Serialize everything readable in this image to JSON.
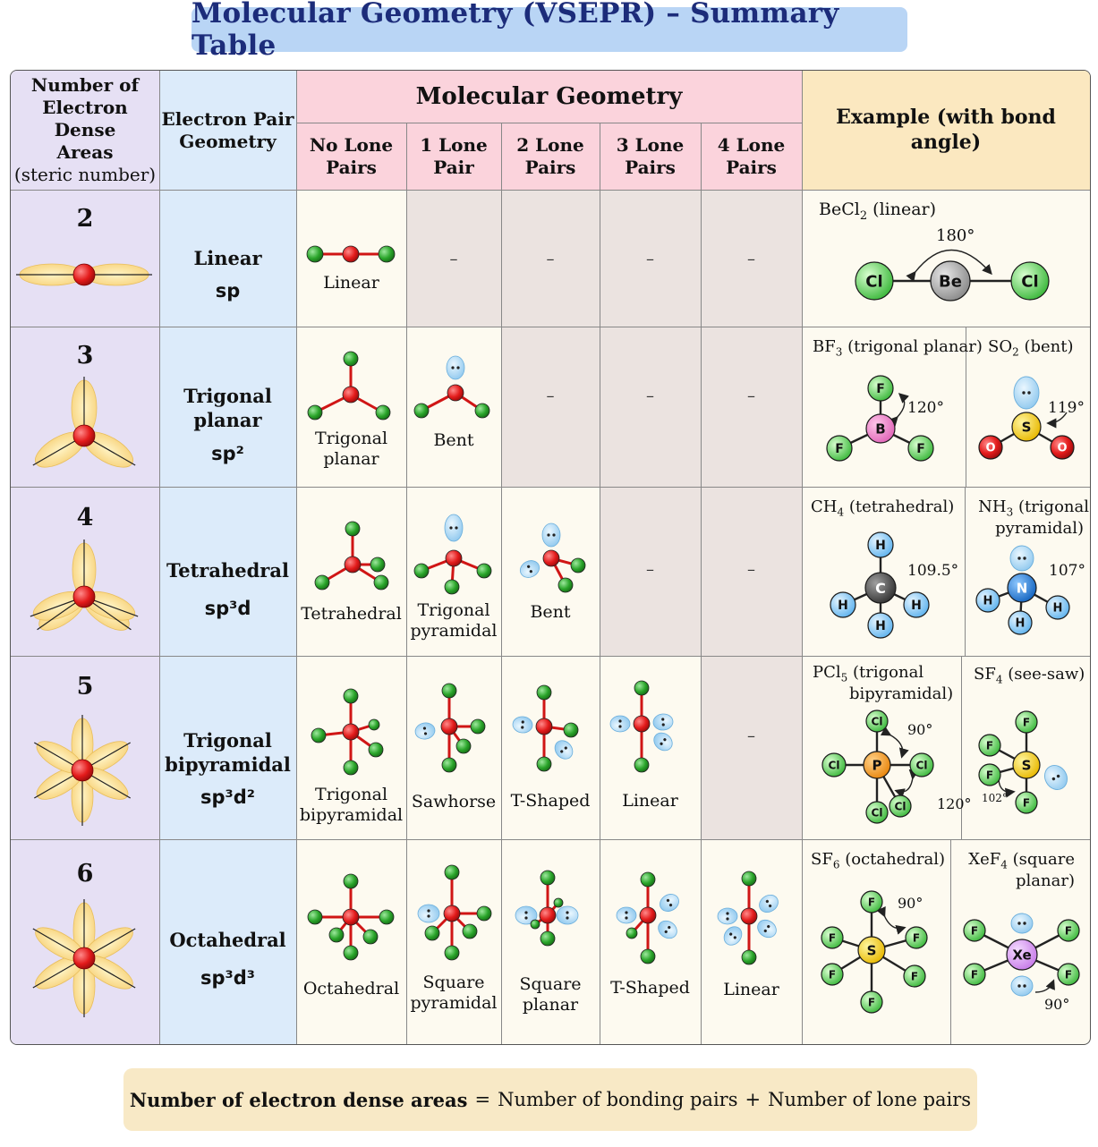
{
  "title": "Molecular Geometry (VSEPR) – Summary Table",
  "header": {
    "col1": [
      "Number of",
      "Electron Dense",
      "Areas",
      "(steric number)"
    ],
    "col2": [
      "Electron Pair",
      "Geometry"
    ],
    "molecular_geometry": "Molecular Geometry",
    "lone_cols": [
      [
        "No Lone",
        "Pairs"
      ],
      [
        "1 Lone",
        "Pair"
      ],
      [
        "2 Lone",
        "Pairs"
      ],
      [
        "3 Lone",
        "Pairs"
      ],
      [
        "4 Lone",
        "Pairs"
      ]
    ],
    "example": "Example (with bond angle)"
  },
  "empty_mark": "–",
  "rows": [
    {
      "steric": "2",
      "epg": [
        "Linear"
      ],
      "hyb": "sp",
      "shapes": [
        [
          "Linear"
        ]
      ]
    },
    {
      "steric": "3",
      "epg": [
        "Trigonal",
        "planar"
      ],
      "hyb": "sp²",
      "shapes": [
        [
          "Trigonal",
          "planar"
        ],
        [
          "Bent"
        ]
      ]
    },
    {
      "steric": "4",
      "epg": [
        "Tetrahedral"
      ],
      "hyb": "sp³d",
      "shapes": [
        [
          "Tetrahedral"
        ],
        [
          "Trigonal",
          "pyramidal"
        ],
        [
          "Bent"
        ]
      ]
    },
    {
      "steric": "5",
      "epg": [
        "Trigonal",
        "bipyramidal"
      ],
      "hyb": "sp³d²",
      "shapes": [
        [
          "Trigonal",
          "bipyramidal"
        ],
        [
          "Sawhorse"
        ],
        [
          "T-Shaped"
        ],
        [
          "Linear"
        ]
      ]
    },
    {
      "steric": "6",
      "epg": [
        "Octahedral"
      ],
      "hyb": "sp³d³",
      "shapes": [
        [
          "Octahedral"
        ],
        [
          "Square",
          "pyramidal"
        ],
        [
          "Square",
          "planar"
        ],
        [
          "T-Shaped"
        ],
        [
          "Linear"
        ]
      ]
    }
  ],
  "examples": {
    "becl2": {
      "formula": "BeCl",
      "sub": "2",
      "desc": "(linear)",
      "angle": "180°",
      "atoms": {
        "left": "Cl",
        "center": "Be",
        "right": "Cl"
      }
    },
    "bf3": {
      "formula": "BF",
      "sub": "3",
      "desc": "(trigonal planar)",
      "angle": "120°",
      "atoms": {
        "center": "B",
        "ligand": "F"
      }
    },
    "so2": {
      "formula": "SO",
      "sub": "2",
      "desc": "(bent)",
      "angle": "119°",
      "atoms": {
        "center": "S",
        "ligand": "O"
      }
    },
    "ch4": {
      "formula": "CH",
      "sub": "4",
      "desc": "(tetrahedral)",
      "angle": "109.5°",
      "atoms": {
        "center": "C",
        "ligand": "H"
      }
    },
    "nh3": {
      "formula": "NH",
      "sub": "3",
      "desc": "(trigonal",
      "desc2": "pyramidal)",
      "angle": "107°",
      "atoms": {
        "center": "N",
        "ligand": "H"
      }
    },
    "pcl5": {
      "formula": "PCl",
      "sub": "5",
      "desc": "(trigonal",
      "desc2": "bipyramidal)",
      "angle1": "90°",
      "angle2": "120°",
      "atoms": {
        "center": "P",
        "ligand": "Cl"
      }
    },
    "sf4": {
      "formula": "SF",
      "sub": "4",
      "desc": "(see-saw)",
      "angle": "102°",
      "atoms": {
        "center": "S",
        "ligand": "F"
      }
    },
    "sf6": {
      "formula": "SF",
      "sub": "6",
      "desc": "(octahedral)",
      "angle": "90°",
      "atoms": {
        "center": "S",
        "ligand": "F"
      }
    },
    "xef4": {
      "formula": "XeF",
      "sub": "4",
      "desc": "(square",
      "desc2": "planar)",
      "angle": "90°",
      "atoms": {
        "center": "Xe",
        "ligand": "F"
      }
    }
  },
  "footer": {
    "left": "Number of electron dense areas",
    "eq": "=",
    "mid": "Number of bonding pairs",
    "plus": "+",
    "right": "Number of lone pairs"
  },
  "colors": {
    "title_bg": "#b9d5f5",
    "title_text": "#1c2c7a",
    "col1_bg": "#e6e0f4",
    "col2_bg": "#dcebfa",
    "geom_header_bg": "#fbd3dc",
    "example_header_bg": "#fbe8c0",
    "gray_cell": "#ebe3e0",
    "atom_red": "#e31b1b",
    "atom_green": "#2aa52a",
    "lone_pair": "#9fd2f2",
    "lobe": "#fbdc8e"
  }
}
